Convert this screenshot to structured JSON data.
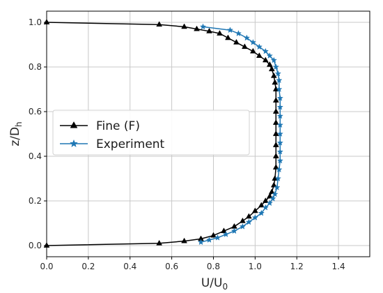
{
  "chart_data": {
    "type": "line",
    "title": "",
    "xlabel": "U/U",
    "xlabel_sub": "0",
    "ylabel": "z/D",
    "ylabel_sub": "h",
    "xlim": [
      0.0,
      1.55
    ],
    "ylim": [
      -0.05,
      1.05
    ],
    "xticks": [
      "0.0",
      "0.2",
      "0.4",
      "0.6",
      "0.8",
      "1.0",
      "1.2",
      "1.4"
    ],
    "xtick_values": [
      0.0,
      0.2,
      0.4,
      0.6,
      0.8,
      1.0,
      1.2,
      1.4
    ],
    "yticks": [
      "0.0",
      "0.2",
      "0.4",
      "0.6",
      "0.8",
      "1.0"
    ],
    "ytick_values": [
      0.0,
      0.2,
      0.4,
      0.6,
      0.8,
      1.0
    ],
    "grid": true,
    "legend_position": "center-left",
    "series": [
      {
        "name": "Fine (F)",
        "color": "#000000",
        "marker": "triangle",
        "points": [
          [
            0.0,
            0.0
          ],
          [
            0.54,
            0.01
          ],
          [
            0.66,
            0.02
          ],
          [
            0.74,
            0.03
          ],
          [
            0.8,
            0.045
          ],
          [
            0.85,
            0.065
          ],
          [
            0.9,
            0.085
          ],
          [
            0.94,
            0.11
          ],
          [
            0.97,
            0.13
          ],
          [
            1.0,
            0.155
          ],
          [
            1.03,
            0.18
          ],
          [
            1.05,
            0.2
          ],
          [
            1.07,
            0.22
          ],
          [
            1.08,
            0.24
          ],
          [
            1.09,
            0.27
          ],
          [
            1.095,
            0.3
          ],
          [
            1.1,
            0.35
          ],
          [
            1.1,
            0.4
          ],
          [
            1.1,
            0.45
          ],
          [
            1.1,
            0.5
          ],
          [
            1.1,
            0.55
          ],
          [
            1.1,
            0.6
          ],
          [
            1.1,
            0.65
          ],
          [
            1.1,
            0.7
          ],
          [
            1.095,
            0.73
          ],
          [
            1.09,
            0.76
          ],
          [
            1.08,
            0.79
          ],
          [
            1.07,
            0.81
          ],
          [
            1.05,
            0.83
          ],
          [
            1.02,
            0.85
          ],
          [
            0.99,
            0.87
          ],
          [
            0.95,
            0.89
          ],
          [
            0.91,
            0.91
          ],
          [
            0.87,
            0.93
          ],
          [
            0.83,
            0.95
          ],
          [
            0.78,
            0.96
          ],
          [
            0.72,
            0.97
          ],
          [
            0.66,
            0.98
          ],
          [
            0.54,
            0.99
          ],
          [
            0.0,
            1.0
          ]
        ]
      },
      {
        "name": "Experiment",
        "color": "#1f77b4",
        "marker": "star",
        "points": [
          [
            0.74,
            0.015
          ],
          [
            0.78,
            0.025
          ],
          [
            0.82,
            0.035
          ],
          [
            0.86,
            0.05
          ],
          [
            0.9,
            0.065
          ],
          [
            0.94,
            0.085
          ],
          [
            0.97,
            0.105
          ],
          [
            1.0,
            0.125
          ],
          [
            1.03,
            0.145
          ],
          [
            1.05,
            0.17
          ],
          [
            1.07,
            0.19
          ],
          [
            1.085,
            0.21
          ],
          [
            1.095,
            0.23
          ],
          [
            1.105,
            0.26
          ],
          [
            1.11,
            0.3
          ],
          [
            1.115,
            0.34
          ],
          [
            1.12,
            0.38
          ],
          [
            1.12,
            0.42
          ],
          [
            1.12,
            0.46
          ],
          [
            1.12,
            0.5
          ],
          [
            1.12,
            0.54
          ],
          [
            1.12,
            0.58
          ],
          [
            1.12,
            0.62
          ],
          [
            1.12,
            0.66
          ],
          [
            1.115,
            0.7
          ],
          [
            1.115,
            0.74
          ],
          [
            1.11,
            0.77
          ],
          [
            1.1,
            0.8
          ],
          [
            1.09,
            0.83
          ],
          [
            1.07,
            0.85
          ],
          [
            1.05,
            0.87
          ],
          [
            1.02,
            0.89
          ],
          [
            0.99,
            0.91
          ],
          [
            0.96,
            0.93
          ],
          [
            0.92,
            0.95
          ],
          [
            0.88,
            0.965
          ],
          [
            0.75,
            0.98
          ]
        ]
      }
    ]
  }
}
